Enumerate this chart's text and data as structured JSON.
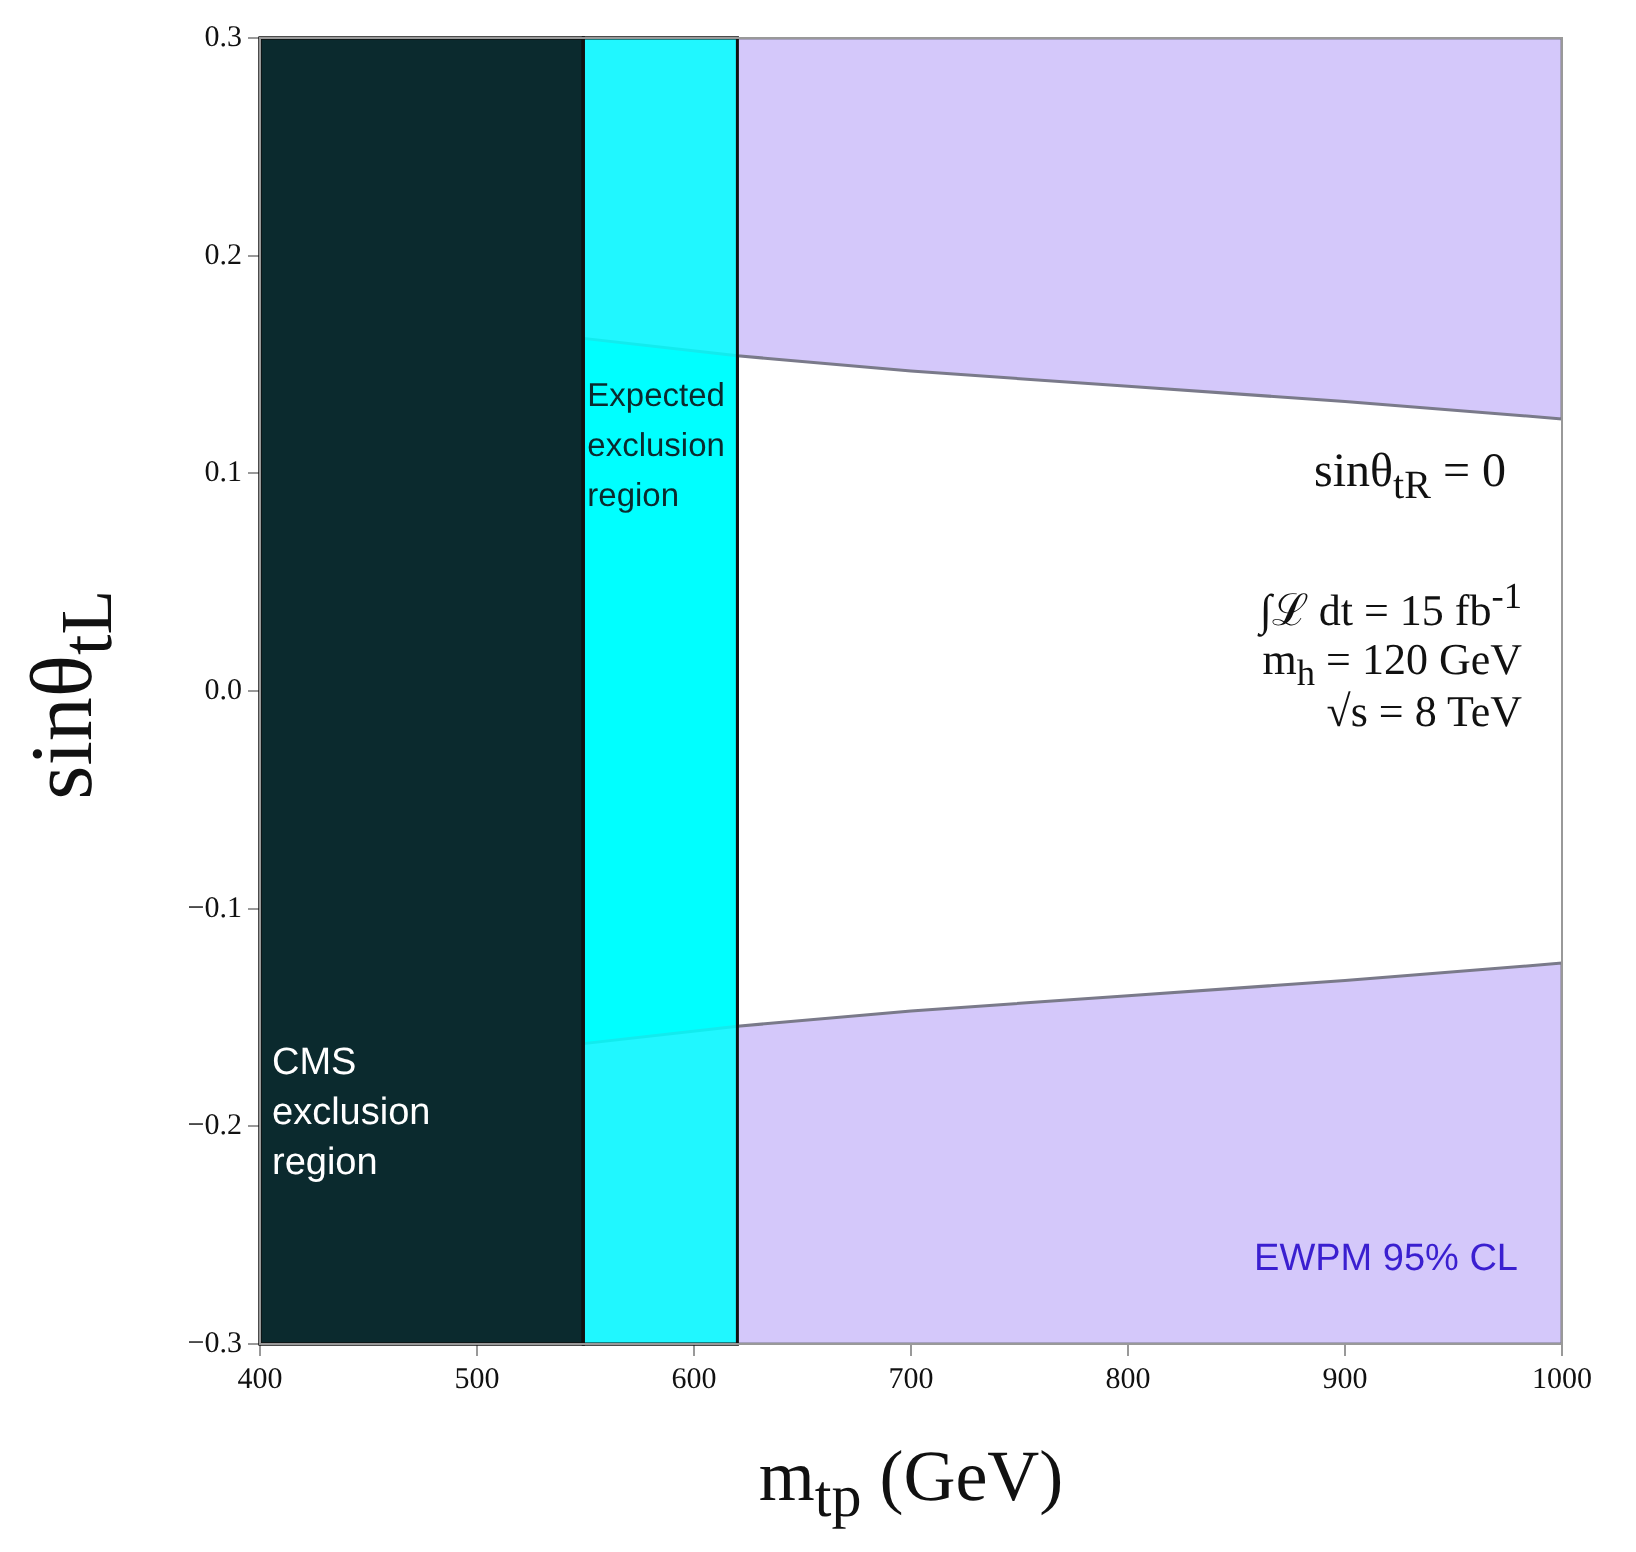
{
  "chart_data": {
    "type": "area",
    "xlabel": "m$_{tp}$ (GeV)",
    "ylabel": "sinθ$_{tL}$",
    "xlim": [
      400,
      1000
    ],
    "xticks": [
      400,
      500,
      600,
      700,
      800,
      900,
      1000
    ],
    "ylim": [
      -0.3,
      0.3
    ],
    "yticks": [
      {
        "value": -0.3,
        "label": "−0.3"
      },
      {
        "value": -0.2,
        "label": "−0.2"
      },
      {
        "value": -0.1,
        "label": "−0.1"
      },
      {
        "value": 0,
        "label": "0.0"
      },
      0.1,
      0.2,
      0.3
    ],
    "series": [
      {
        "color": "#d4c8fa",
        "x": [
          549,
          620,
          700,
          800,
          900,
          1000,
          1000,
          549
        ],
        "values": [
          0.162,
          0.154,
          0.147,
          0.14,
          0.133,
          0.125,
          0.3,
          0.3
        ]
      },
      {
        "name": "EWPM 95% CL",
        "color": "#d4c8fa",
        "x": [
          549,
          620,
          700,
          800,
          900,
          1000,
          1000,
          549
        ],
        "values": [
          -0.162,
          -0.154,
          -0.147,
          -0.14,
          -0.133,
          -0.125,
          -0.3,
          -0.3
        ]
      }
    ],
    "bands": [
      {
        "axis": "x",
        "from": 400,
        "to": 549,
        "label": "CMS exclusion region",
        "color": "#0b2a2e"
      },
      {
        "axis": "x",
        "from": 549,
        "to": 620,
        "label": "Expected exclusion region",
        "color": "#00ffff"
      }
    ],
    "annotations": [
      "sinθ$_{tR}$ = 0",
      "∫ℒ dt = 15 fb$^{-1}$",
      "m$_{h}$ = 120 GeV",
      "√s = 8 TeV"
    ]
  }
}
